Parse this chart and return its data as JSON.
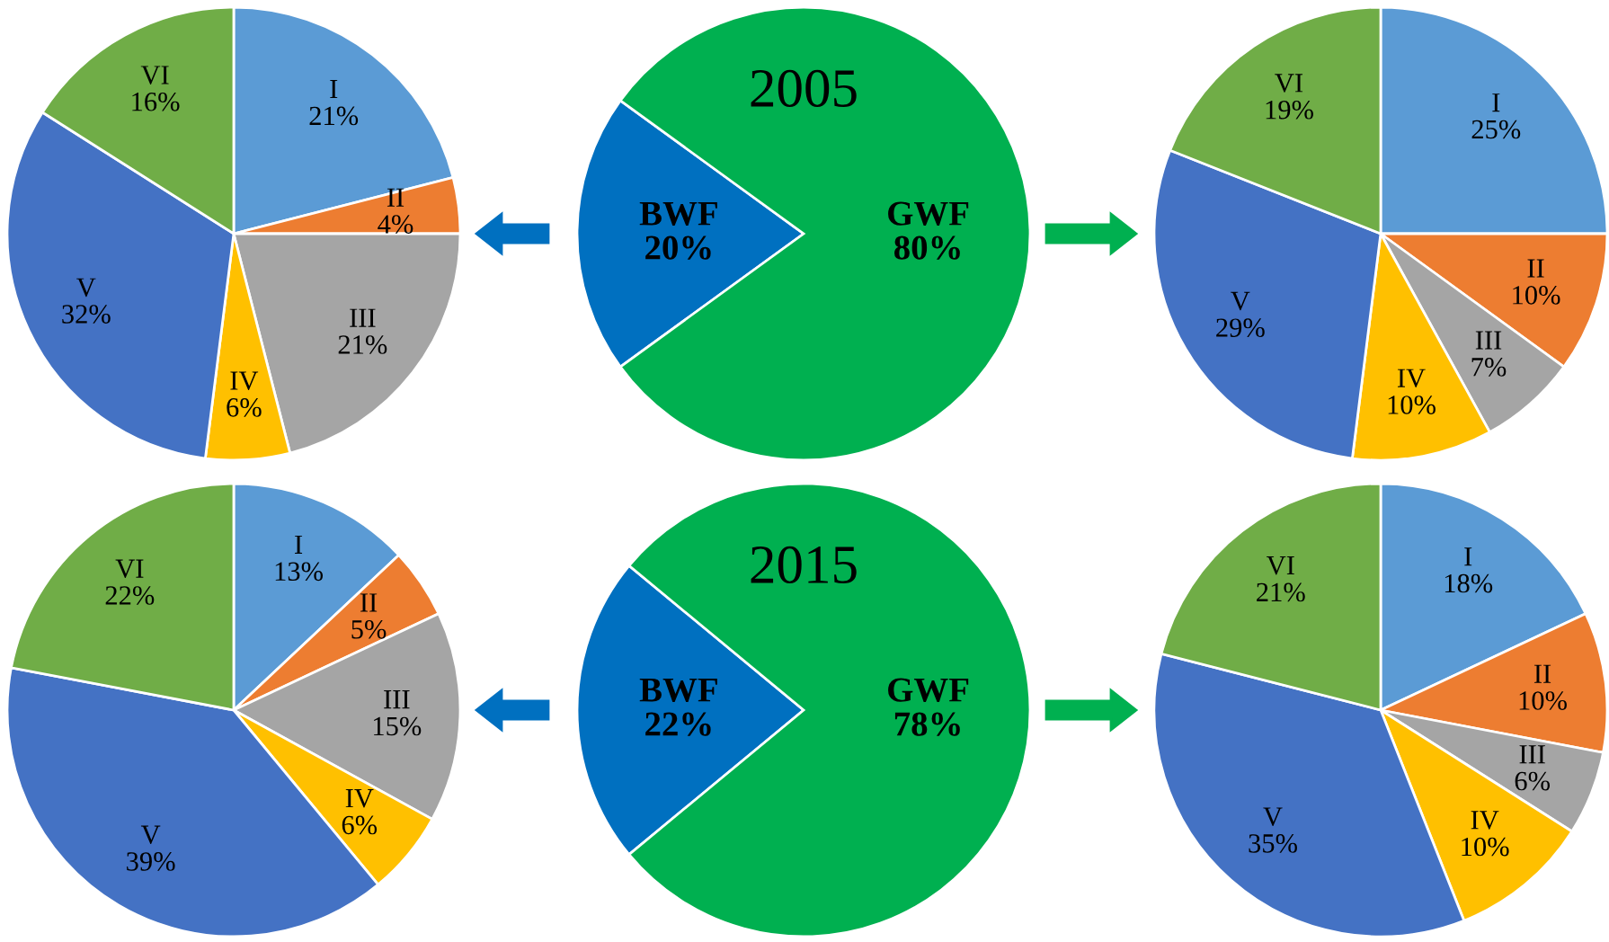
{
  "chart_data": [
    {
      "type": "pie",
      "categories": [
        "I",
        "II",
        "III",
        "IV",
        "V",
        "VI"
      ],
      "values": [
        21,
        4,
        21,
        6,
        32,
        16
      ],
      "value_labels": [
        "21%",
        "4%",
        "21%",
        "6%",
        "32%",
        "16%"
      ],
      "colors": [
        "#5b9bd5",
        "#ed7d31",
        "#a5a5a5",
        "#ffc000",
        "#4472c4",
        "#70ad47"
      ],
      "data_labels": true
    },
    {
      "type": "pie",
      "title": "2005",
      "categories": [
        "BWF",
        "GWF"
      ],
      "values": [
        20,
        80
      ],
      "value_labels": [
        "20%",
        "80%"
      ],
      "colors": [
        "#0070c0",
        "#00b050"
      ],
      "data_labels": true
    },
    {
      "type": "pie",
      "categories": [
        "I",
        "II",
        "III",
        "IV",
        "V",
        "VI"
      ],
      "values": [
        25,
        10,
        7,
        10,
        29,
        19
      ],
      "value_labels": [
        "25%",
        "10%",
        "7%",
        "10%",
        "29%",
        "19%"
      ],
      "colors": [
        "#5b9bd5",
        "#ed7d31",
        "#a5a5a5",
        "#ffc000",
        "#4472c4",
        "#70ad47"
      ],
      "data_labels": true
    },
    {
      "type": "pie",
      "categories": [
        "I",
        "II",
        "III",
        "IV",
        "V",
        "VI"
      ],
      "values": [
        13,
        5,
        15,
        6,
        39,
        22
      ],
      "value_labels": [
        "13%",
        "5%",
        "15%",
        "6%",
        "39%",
        "22%"
      ],
      "colors": [
        "#5b9bd5",
        "#ed7d31",
        "#a5a5a5",
        "#ffc000",
        "#4472c4",
        "#70ad47"
      ],
      "data_labels": true
    },
    {
      "type": "pie",
      "title": "2015",
      "categories": [
        "BWF",
        "GWF"
      ],
      "values": [
        22,
        78
      ],
      "value_labels": [
        "22%",
        "78%"
      ],
      "colors": [
        "#0070c0",
        "#00b050"
      ],
      "data_labels": true
    },
    {
      "type": "pie",
      "categories": [
        "I",
        "II",
        "III",
        "IV",
        "V",
        "VI"
      ],
      "values": [
        18,
        10,
        6,
        10,
        35,
        21
      ],
      "value_labels": [
        "18%",
        "10%",
        "6%",
        "10%",
        "35%",
        "21%"
      ],
      "colors": [
        "#5b9bd5",
        "#ed7d31",
        "#a5a5a5",
        "#ffc000",
        "#4472c4",
        "#70ad47"
      ],
      "data_labels": true
    }
  ]
}
